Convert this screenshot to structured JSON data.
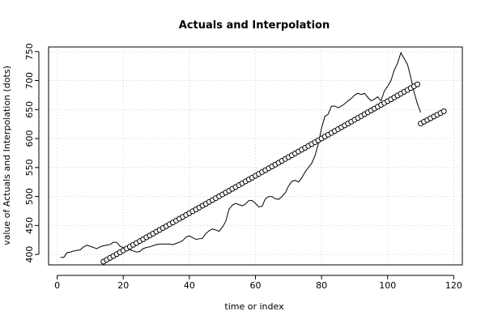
{
  "chart_data": {
    "type": "line",
    "title": "Actuals and Interpolation",
    "xlabel": "time or index",
    "ylabel": "value of Actuals and Interpolation (dots)",
    "xlim": [
      -2.6,
      122.6
    ],
    "ylim": [
      382,
      758
    ],
    "xticks": [
      0,
      20,
      40,
      60,
      80,
      100,
      120
    ],
    "yticks": [
      400,
      450,
      500,
      550,
      600,
      650,
      700,
      750
    ],
    "grid": true,
    "series": [
      {
        "style": "line",
        "x": [
          1,
          2,
          3,
          4,
          5,
          6,
          7,
          8,
          9,
          10,
          11,
          12,
          13,
          14,
          15,
          16,
          17,
          18,
          19,
          20,
          21,
          22,
          23,
          24,
          25,
          26,
          27,
          28,
          29,
          30,
          31,
          32,
          33,
          34,
          35,
          36,
          37,
          38,
          39,
          40,
          41,
          42,
          43,
          44,
          45,
          46,
          47,
          48,
          49,
          50,
          51,
          52,
          53,
          54,
          55,
          56,
          57,
          58,
          59,
          60,
          61,
          62,
          63,
          64,
          65,
          66,
          67,
          68,
          69,
          70,
          71,
          72,
          73,
          74,
          75,
          76,
          77,
          78,
          79,
          80,
          81,
          82,
          83,
          84,
          85,
          86,
          87,
          88,
          89,
          90,
          91,
          92,
          93,
          94,
          95,
          96,
          97,
          98,
          99,
          100,
          101,
          102,
          103,
          104,
          105,
          106,
          107,
          108,
          109,
          110
        ],
        "y": [
          395,
          395,
          403,
          404,
          406,
          407,
          408,
          413,
          416,
          414,
          412,
          410,
          413,
          415,
          416,
          417,
          421,
          421,
          414,
          412,
          410,
          408,
          406,
          404,
          405,
          410,
          412,
          413,
          415,
          417,
          418,
          418,
          418,
          418,
          417,
          419,
          421,
          424,
          430,
          432,
          429,
          426,
          427,
          428,
          436,
          441,
          444,
          442,
          440,
          447,
          457,
          478,
          485,
          488,
          486,
          484,
          487,
          493,
          493,
          488,
          482,
          483,
          496,
          500,
          500,
          496,
          495,
          500,
          506,
          518,
          526,
          528,
          525,
          532,
          542,
          550,
          557,
          570,
          590,
          618,
          638,
          642,
          656,
          656,
          653,
          656,
          660,
          665,
          669,
          675,
          678,
          676,
          678,
          671,
          665,
          668,
          672,
          665,
          682,
          690,
          700,
          718,
          730,
          748,
          738,
          728,
          706,
          680,
          660,
          645
        ]
      },
      {
        "style": "points",
        "x_start": 14,
        "x_end": 117,
        "slope": 3.22,
        "intercept": 342.5,
        "gap_after": 109,
        "second_segment_start_y": 626,
        "second_segment_slope": 3.0
      }
    ]
  }
}
